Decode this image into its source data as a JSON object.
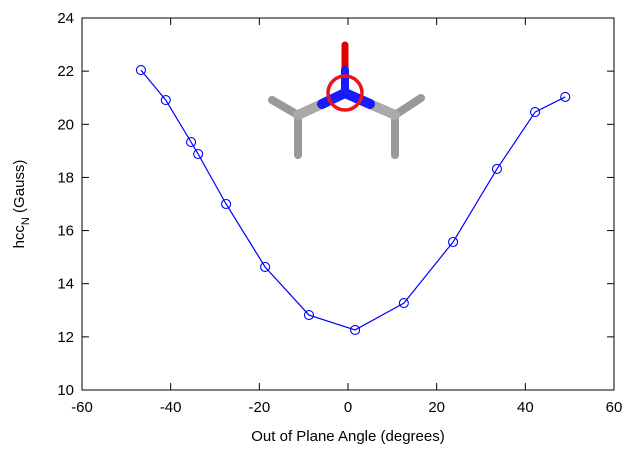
{
  "chart_data": {
    "type": "line",
    "xlabel": "Out of Plane Angle (degrees)",
    "ylabel": [
      "hcc",
      "N",
      " (Gauss)"
    ],
    "x": [
      -46.7,
      -41.1,
      -35.4,
      -33.8,
      -27.5,
      -18.7,
      -8.8,
      1.6,
      12.6,
      23.7,
      33.6,
      42.2,
      49.0
    ],
    "series": [
      {
        "color": "#0000ff",
        "values": [
          22.04,
          20.91,
          19.33,
          18.88,
          17.0,
          14.63,
          12.82,
          12.26,
          13.27,
          15.57,
          18.32,
          20.46,
          21.03
        ]
      }
    ],
    "xlim": [
      -60,
      60
    ],
    "xticks": [
      -60,
      -40,
      -20,
      0,
      20,
      40,
      60
    ],
    "ylim": [
      10,
      24
    ],
    "yticks": [
      10,
      12,
      14,
      16,
      18,
      20,
      22,
      24
    ]
  }
}
